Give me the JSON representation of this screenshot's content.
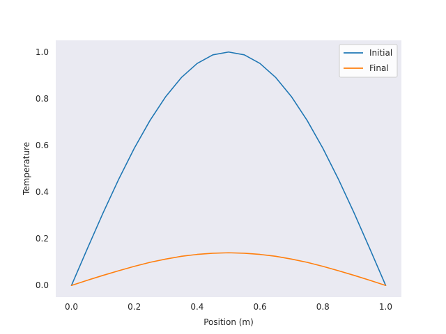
{
  "chart_data": {
    "type": "line",
    "title": "",
    "xlabel": "Position (m)",
    "ylabel": "Temperature",
    "xlim": [
      -0.05,
      1.05
    ],
    "ylim": [
      -0.05,
      1.05
    ],
    "x_ticks": [
      0.0,
      0.2,
      0.4,
      0.6,
      0.8,
      1.0
    ],
    "x_tick_labels": [
      "0.0",
      "0.2",
      "0.4",
      "0.6",
      "0.8",
      "1.0"
    ],
    "y_ticks": [
      0.0,
      0.2,
      0.4,
      0.6,
      0.8,
      1.0
    ],
    "y_tick_labels": [
      "0.0",
      "0.2",
      "0.4",
      "0.6",
      "0.8",
      "1.0"
    ],
    "grid": false,
    "legend_position": "top-right",
    "x": [
      0.0,
      0.05,
      0.1,
      0.15,
      0.2,
      0.25,
      0.3,
      0.35,
      0.4,
      0.45,
      0.5,
      0.55,
      0.6,
      0.65,
      0.7,
      0.75,
      0.8,
      0.85,
      0.9,
      0.95,
      1.0
    ],
    "series": [
      {
        "name": "Initial",
        "color": "#1f77b4",
        "values": [
          0.0,
          0.156,
          0.309,
          0.454,
          0.588,
          0.707,
          0.809,
          0.891,
          0.951,
          0.988,
          1.0,
          0.988,
          0.951,
          0.891,
          0.809,
          0.707,
          0.588,
          0.454,
          0.309,
          0.156,
          0.0
        ]
      },
      {
        "name": "Final",
        "color": "#ff7f0e",
        "values": [
          0.0,
          0.022,
          0.043,
          0.063,
          0.082,
          0.099,
          0.113,
          0.125,
          0.133,
          0.138,
          0.14,
          0.138,
          0.133,
          0.125,
          0.113,
          0.099,
          0.082,
          0.063,
          0.043,
          0.022,
          0.0
        ]
      }
    ]
  }
}
